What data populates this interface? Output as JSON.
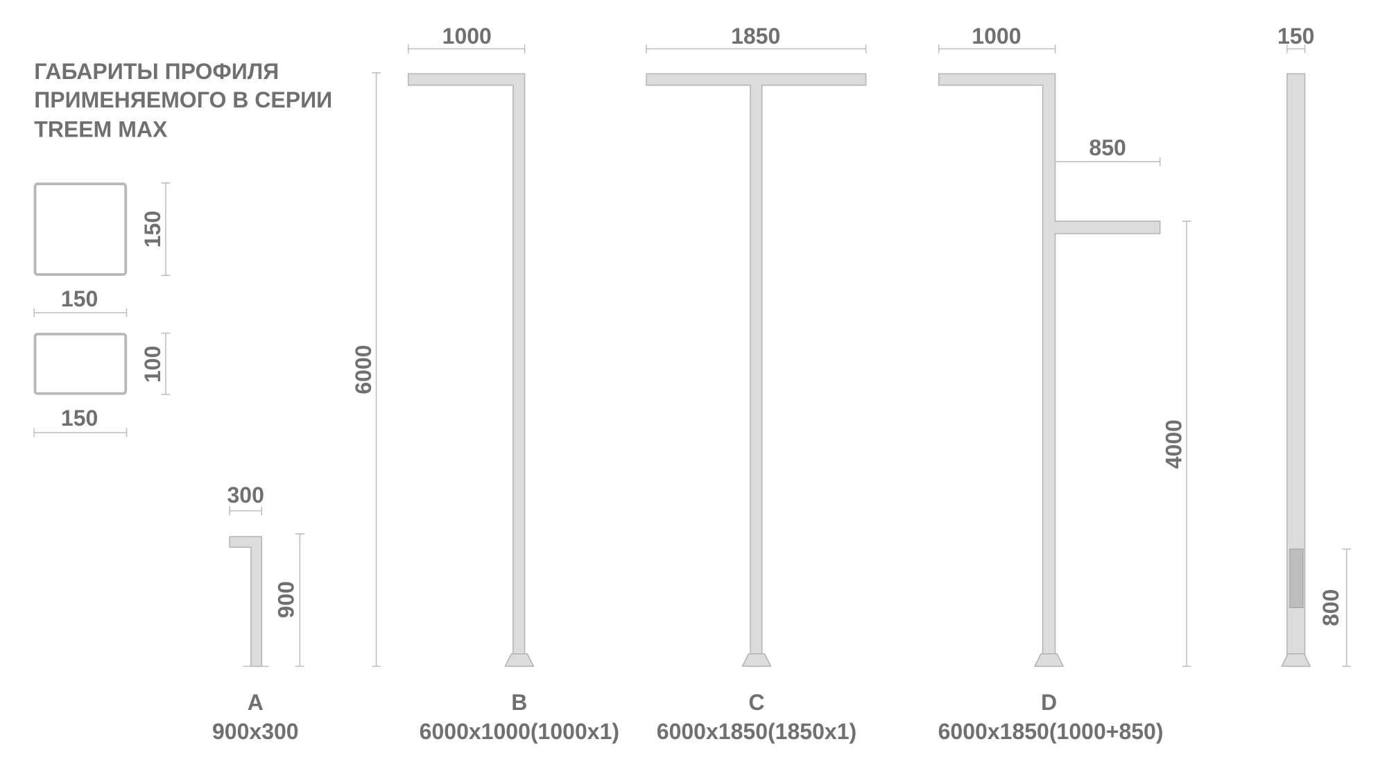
{
  "title_lines": [
    "ГАБАРИТЫ ПРОФИЛЯ",
    "ПРИМЕНЯЕМОГО В СЕРИИ",
    "TREEM MAX"
  ],
  "profiles": [
    {
      "height": "150",
      "width": "150"
    },
    {
      "height": "100",
      "width": "150"
    }
  ],
  "common_height": "6000",
  "models": {
    "A": {
      "letter": "A",
      "size": "900x300",
      "arm": "300",
      "height": "900"
    },
    "B": {
      "letter": "B",
      "size": "6000x1000(1000x1)",
      "arm": "1000"
    },
    "C": {
      "letter": "C",
      "size": "6000x1850(1850x1)",
      "arm": "1850"
    },
    "D": {
      "letter": "D",
      "size": "6000x1850(1000+850)",
      "arm": "1000",
      "arm2": "850",
      "arm2_height": "4000"
    },
    "E": {
      "width": "150",
      "panel_height": "800"
    }
  },
  "colors": {
    "fill": "#dcdcdc",
    "text": "#707070",
    "dim": "#bdbdbd"
  }
}
